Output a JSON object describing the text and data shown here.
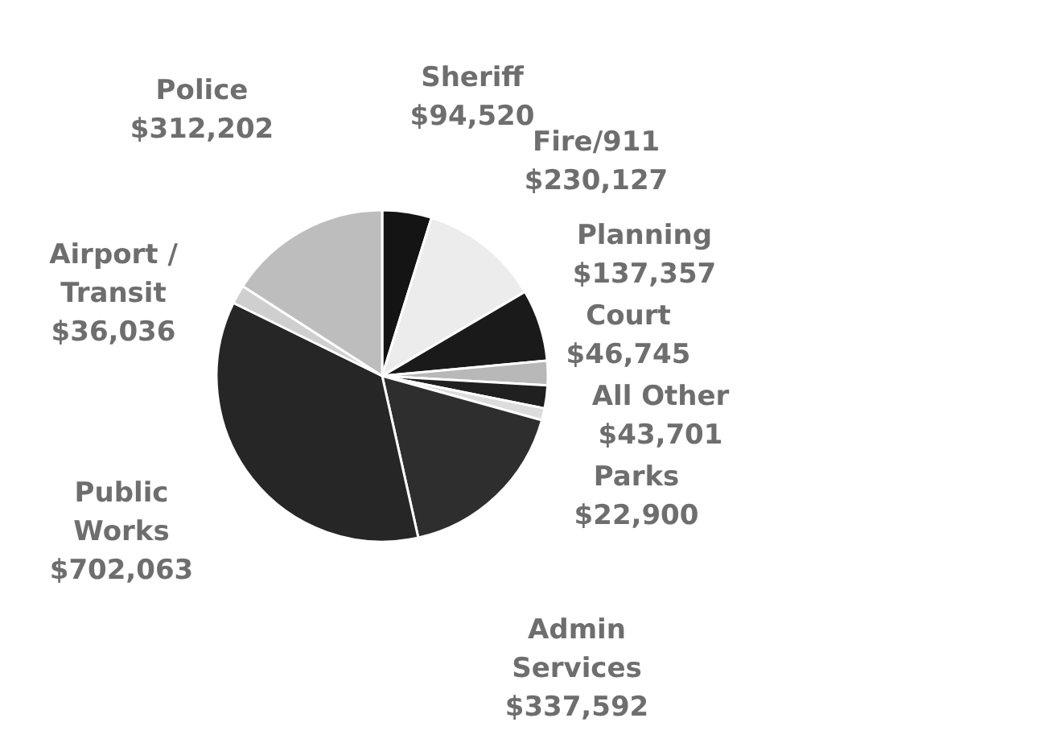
{
  "chart_data": {
    "type": "pie",
    "categories": [
      "Sheriff",
      "Fire/911",
      "Planning",
      "Court",
      "All Other",
      "Parks",
      "Admin Services",
      "Public Works",
      "Airport / Transit",
      "Police"
    ],
    "values": [
      94520,
      230127,
      137357,
      46745,
      43701,
      22900,
      337592,
      702063,
      36036,
      312202
    ],
    "value_labels": [
      "$94,520",
      "$230,127",
      "$137,357",
      "$46,745",
      "$43,701",
      "$22,900",
      "$337,592",
      "$702,063",
      "$36,036",
      "$312,202"
    ],
    "colors": [
      "#141414",
      "#ececec",
      "#1a1a1a",
      "#b8b8b8",
      "#202020",
      "#dcdcdc",
      "#2e2e2e",
      "#262626",
      "#cfcfcf",
      "#bdbdbd"
    ]
  }
}
